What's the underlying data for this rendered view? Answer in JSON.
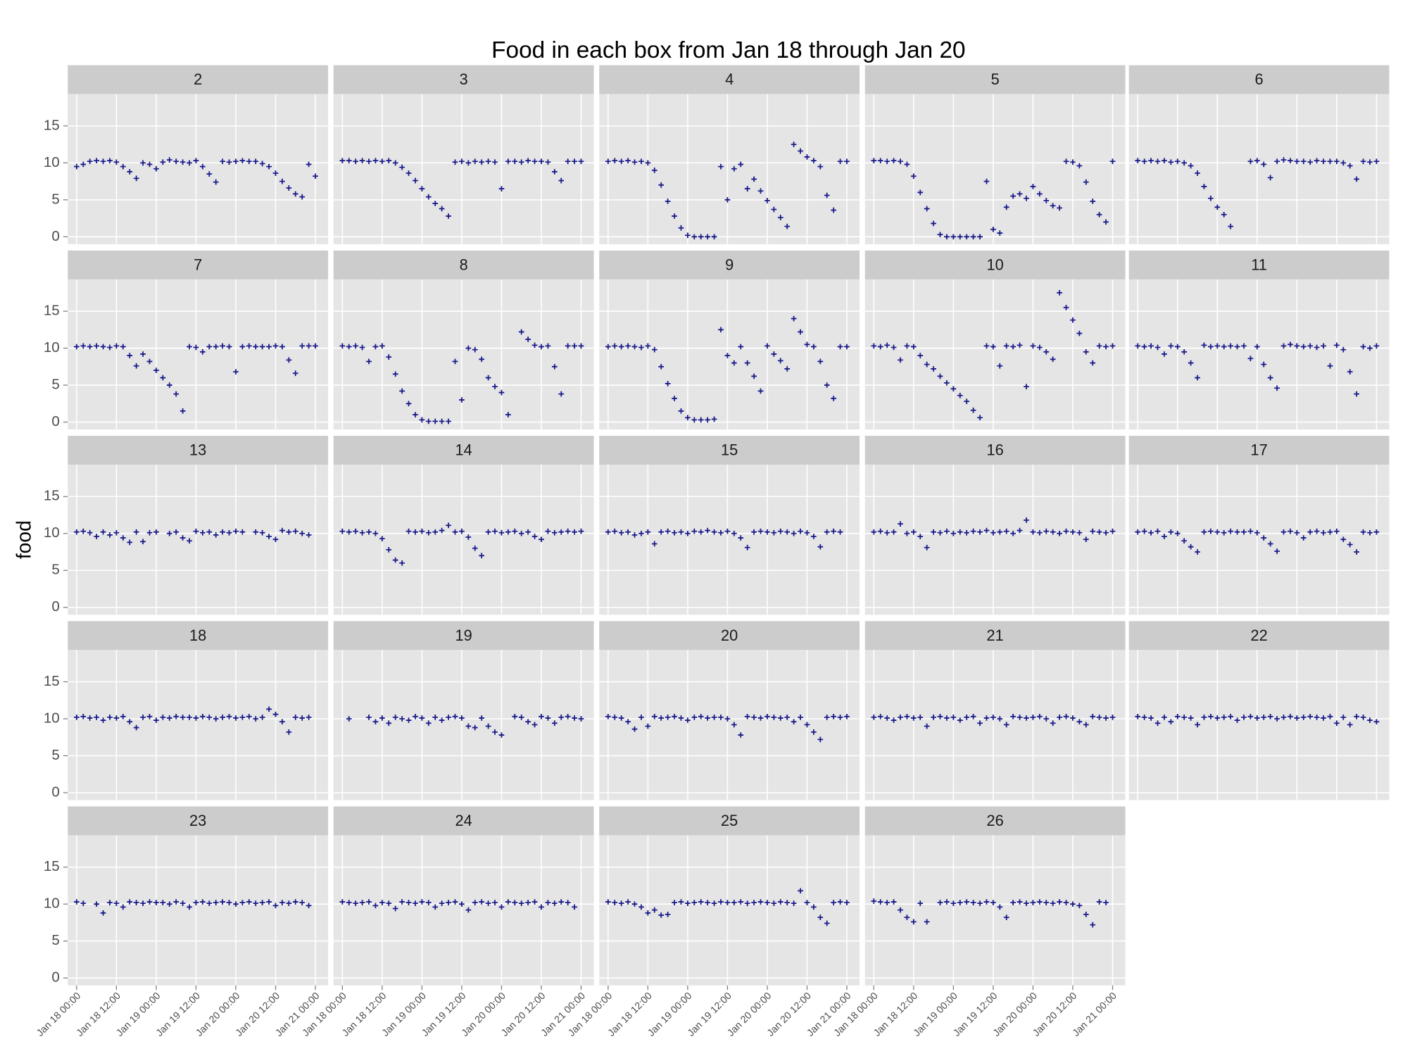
{
  "chart_data": {
    "type": "scatter",
    "title": "Food in each box from Jan 18 through Jan 20",
    "y_label": "food",
    "color": "#1a1a8a",
    "grid": true,
    "xlim": [
      "Jan 17 21:20",
      "Jan 21 03:50"
    ],
    "xticks": [
      "Jan 18 00:00",
      "Jan 18 12:00",
      "Jan 19 00:00",
      "Jan 19 12:00",
      "Jan 20 00:00",
      "Jan 20 12:00",
      "Jan 21 00:00"
    ],
    "ylim": [
      -1,
      19.3
    ],
    "yticks": [
      0,
      5,
      10,
      15
    ],
    "x": [
      "Jan 18 00:00",
      "Jan 18 02:00",
      "Jan 18 04:00",
      "Jan 18 06:00",
      "Jan 18 08:00",
      "Jan 18 10:00",
      "Jan 18 12:00",
      "Jan 18 14:00",
      "Jan 18 16:00",
      "Jan 18 18:00",
      "Jan 18 20:00",
      "Jan 18 22:00",
      "Jan 19 00:00",
      "Jan 19 02:00",
      "Jan 19 04:00",
      "Jan 19 06:00",
      "Jan 19 08:00",
      "Jan 19 10:00",
      "Jan 19 12:00",
      "Jan 19 14:00",
      "Jan 19 16:00",
      "Jan 19 18:00",
      "Jan 19 20:00",
      "Jan 19 22:00",
      "Jan 20 00:00",
      "Jan 20 02:00",
      "Jan 20 04:00",
      "Jan 20 06:00",
      "Jan 20 08:00",
      "Jan 20 10:00",
      "Jan 20 12:00",
      "Jan 20 14:00",
      "Jan 20 16:00",
      "Jan 20 18:00",
      "Jan 20 20:00",
      "Jan 20 22:00",
      "Jan 21 00:00"
    ],
    "facets": [
      {
        "name": "2",
        "values": [
          9.5,
          9.8,
          10.2,
          10.3,
          10.2,
          10.3,
          10.1,
          9.5,
          8.8,
          7.9,
          10.0,
          9.8,
          9.2,
          10.1,
          10.4,
          10.2,
          10.1,
          10.0,
          10.3,
          9.5,
          8.5,
          7.4,
          10.2,
          10.1,
          10.2,
          10.3,
          10.2,
          10.2,
          9.9,
          9.5,
          8.6,
          7.5,
          6.6,
          5.8,
          5.4,
          9.8,
          8.2
        ]
      },
      {
        "name": "3",
        "values": [
          10.3,
          10.3,
          10.2,
          10.3,
          10.2,
          10.3,
          10.2,
          10.3,
          10.0,
          9.4,
          8.6,
          7.6,
          6.5,
          5.4,
          4.5,
          3.8,
          2.8,
          10.1,
          10.2,
          10.0,
          10.2,
          10.1,
          10.2,
          10.1,
          6.5,
          10.2,
          10.2,
          10.1,
          10.3,
          10.2,
          10.2,
          10.1,
          8.8,
          7.6,
          10.2,
          10.2,
          10.2
        ]
      },
      {
        "name": "4",
        "values": [
          10.2,
          10.3,
          10.2,
          10.3,
          10.1,
          10.2,
          10.0,
          9.0,
          7.0,
          4.8,
          2.8,
          1.2,
          0.2,
          0.0,
          0.0,
          0.0,
          0.0,
          9.5,
          5.0,
          9.2,
          9.8,
          6.5,
          7.8,
          6.2,
          4.9,
          3.7,
          2.6,
          1.4,
          12.5,
          11.6,
          10.8,
          10.3,
          9.5,
          5.6,
          3.6,
          10.2,
          10.2
        ]
      },
      {
        "name": "5",
        "values": [
          10.3,
          10.3,
          10.2,
          10.3,
          10.2,
          9.8,
          8.2,
          6.0,
          3.8,
          1.8,
          0.3,
          0.0,
          0.0,
          0.0,
          0.0,
          0.0,
          0.0,
          7.5,
          1.0,
          0.5,
          4.0,
          5.5,
          5.8,
          5.2,
          6.8,
          5.8,
          4.9,
          4.2,
          3.9,
          10.2,
          10.1,
          9.6,
          7.4,
          4.8,
          3.0,
          2.0,
          10.2
        ]
      },
      {
        "name": "6",
        "values": [
          10.3,
          10.2,
          10.3,
          10.2,
          10.3,
          10.1,
          10.2,
          10.0,
          9.6,
          8.6,
          6.8,
          5.2,
          4.0,
          3.0,
          1.4,
          null,
          null,
          10.2,
          10.3,
          9.8,
          8.0,
          10.2,
          10.4,
          10.3,
          10.2,
          10.2,
          10.1,
          10.3,
          10.2,
          10.2,
          10.2,
          10.0,
          9.6,
          7.8,
          10.2,
          10.1,
          10.2
        ]
      },
      {
        "name": "7",
        "values": [
          10.2,
          10.3,
          10.2,
          10.3,
          10.2,
          10.1,
          10.3,
          10.2,
          9.0,
          7.6,
          9.2,
          8.2,
          7.0,
          6.0,
          5.0,
          3.8,
          1.5,
          10.2,
          10.1,
          9.5,
          10.2,
          10.2,
          10.3,
          10.2,
          6.8,
          10.2,
          10.3,
          10.2,
          10.2,
          10.2,
          10.3,
          10.2,
          8.4,
          6.6,
          10.3,
          10.3,
          10.3
        ]
      },
      {
        "name": "8",
        "values": [
          10.3,
          10.2,
          10.3,
          10.1,
          8.2,
          10.2,
          10.3,
          8.8,
          6.5,
          4.2,
          2.5,
          1.0,
          0.3,
          0.1,
          0.1,
          0.1,
          0.1,
          8.2,
          3.0,
          10.0,
          9.8,
          8.5,
          6.0,
          4.8,
          4.0,
          1.0,
          null,
          12.2,
          11.2,
          10.4,
          10.2,
          10.3,
          7.5,
          3.8,
          10.3,
          10.3,
          10.3
        ]
      },
      {
        "name": "9",
        "values": [
          10.2,
          10.3,
          10.2,
          10.3,
          10.2,
          10.1,
          10.3,
          9.8,
          7.5,
          5.2,
          3.2,
          1.5,
          0.6,
          0.3,
          0.3,
          0.3,
          0.4,
          12.5,
          9.0,
          8.0,
          10.2,
          8.0,
          6.2,
          4.2,
          10.3,
          9.2,
          8.3,
          7.2,
          14.0,
          12.2,
          10.5,
          10.2,
          8.2,
          5.0,
          3.2,
          10.2,
          10.2
        ]
      },
      {
        "name": "10",
        "values": [
          10.3,
          10.2,
          10.4,
          10.1,
          8.4,
          10.3,
          10.2,
          9.0,
          7.8,
          7.2,
          6.2,
          5.3,
          4.5,
          3.6,
          2.8,
          1.6,
          0.6,
          10.3,
          10.2,
          7.6,
          10.3,
          10.2,
          10.4,
          4.8,
          10.3,
          10.1,
          9.5,
          8.5,
          17.5,
          15.5,
          13.8,
          12.0,
          9.5,
          8.0,
          10.3,
          10.2,
          10.3
        ]
      },
      {
        "name": "11",
        "values": [
          10.3,
          10.2,
          10.3,
          10.1,
          9.2,
          10.3,
          10.2,
          9.5,
          8.0,
          6.0,
          10.4,
          10.2,
          10.3,
          10.2,
          10.3,
          10.2,
          10.3,
          8.6,
          10.2,
          7.8,
          6.0,
          4.6,
          10.3,
          10.5,
          10.3,
          10.2,
          10.3,
          10.1,
          10.3,
          7.6,
          10.4,
          9.8,
          6.8,
          3.8,
          10.2,
          10.0,
          10.3
        ]
      },
      {
        "name": "13",
        "values": [
          10.2,
          10.3,
          10.1,
          9.6,
          10.2,
          9.8,
          10.1,
          9.4,
          8.8,
          10.2,
          8.9,
          10.1,
          10.2,
          null,
          10.0,
          10.2,
          9.4,
          9.0,
          10.3,
          10.1,
          10.2,
          9.8,
          10.2,
          10.1,
          10.3,
          10.2,
          null,
          10.2,
          10.1,
          9.6,
          9.2,
          10.4,
          10.2,
          10.3,
          10.0,
          9.8,
          null
        ]
      },
      {
        "name": "14",
        "values": [
          10.3,
          10.2,
          10.3,
          10.1,
          10.2,
          10.0,
          9.3,
          7.8,
          6.4,
          6.0,
          10.3,
          10.2,
          10.3,
          10.1,
          10.2,
          10.4,
          11.1,
          10.2,
          10.3,
          9.5,
          8.0,
          7.0,
          10.2,
          10.3,
          10.1,
          10.2,
          10.3,
          10.0,
          10.2,
          9.6,
          9.2,
          10.3,
          10.1,
          10.2,
          10.3,
          10.2,
          10.3
        ]
      },
      {
        "name": "15",
        "values": [
          10.2,
          10.3,
          10.1,
          10.2,
          9.8,
          10.0,
          10.2,
          8.6,
          10.2,
          10.3,
          10.1,
          10.2,
          10.0,
          10.3,
          10.2,
          10.4,
          10.2,
          10.1,
          10.3,
          10.0,
          9.4,
          8.1,
          10.2,
          10.3,
          10.2,
          10.1,
          10.3,
          10.2,
          10.0,
          10.3,
          10.1,
          9.6,
          8.2,
          10.2,
          10.3,
          10.2,
          null
        ]
      },
      {
        "name": "16",
        "values": [
          10.2,
          10.3,
          10.1,
          10.2,
          11.3,
          10.0,
          10.2,
          9.6,
          8.1,
          10.2,
          10.1,
          10.3,
          10.0,
          10.2,
          10.1,
          10.3,
          10.2,
          10.4,
          10.1,
          10.2,
          10.3,
          10.0,
          10.4,
          11.8,
          10.2,
          10.1,
          10.3,
          10.2,
          10.0,
          10.3,
          10.2,
          10.1,
          9.2,
          10.3,
          10.2,
          10.1,
          10.3
        ]
      },
      {
        "name": "17",
        "values": [
          10.2,
          10.3,
          10.1,
          10.3,
          9.6,
          10.2,
          10.0,
          9.0,
          8.2,
          7.5,
          10.2,
          10.3,
          10.2,
          10.1,
          10.3,
          10.2,
          10.2,
          10.3,
          10.1,
          9.4,
          8.6,
          7.6,
          10.2,
          10.3,
          10.1,
          9.4,
          10.2,
          10.3,
          10.1,
          10.2,
          10.3,
          9.2,
          8.5,
          7.5,
          10.2,
          10.1,
          10.2
        ]
      },
      {
        "name": "18",
        "values": [
          10.2,
          10.3,
          10.1,
          10.2,
          9.8,
          10.2,
          10.1,
          10.3,
          9.6,
          8.8,
          10.2,
          10.3,
          9.8,
          10.2,
          10.1,
          10.3,
          10.2,
          10.2,
          10.1,
          10.3,
          10.2,
          10.0,
          10.2,
          10.3,
          10.1,
          10.2,
          10.3,
          10.0,
          10.2,
          11.3,
          10.6,
          9.6,
          8.2,
          10.2,
          10.1,
          10.2,
          null
        ]
      },
      {
        "name": "19",
        "values": [
          null,
          10.0,
          null,
          null,
          10.2,
          9.6,
          10.1,
          9.4,
          10.2,
          10.0,
          9.8,
          10.3,
          10.1,
          9.4,
          10.2,
          9.8,
          10.2,
          10.3,
          10.1,
          9.0,
          8.8,
          10.1,
          9.0,
          8.2,
          7.8,
          null,
          10.3,
          10.2,
          9.6,
          9.2,
          10.3,
          10.1,
          9.4,
          10.2,
          10.3,
          10.1,
          10.0
        ]
      },
      {
        "name": "20",
        "values": [
          10.3,
          10.2,
          10.1,
          9.6,
          8.6,
          10.2,
          9.0,
          10.3,
          10.1,
          10.2,
          10.3,
          10.1,
          9.8,
          10.2,
          10.3,
          10.1,
          10.2,
          10.2,
          10.0,
          9.2,
          7.8,
          10.3,
          10.2,
          10.1,
          10.3,
          10.2,
          10.1,
          10.2,
          9.6,
          10.2,
          9.2,
          8.2,
          7.2,
          10.2,
          10.3,
          10.2,
          10.3
        ]
      },
      {
        "name": "21",
        "values": [
          10.2,
          10.3,
          10.1,
          9.8,
          10.2,
          10.3,
          10.1,
          10.2,
          9.0,
          10.2,
          10.3,
          10.1,
          10.2,
          9.8,
          10.2,
          10.3,
          9.4,
          10.1,
          10.2,
          10.0,
          9.2,
          10.3,
          10.2,
          10.1,
          10.2,
          10.3,
          10.0,
          9.4,
          10.2,
          10.3,
          10.1,
          9.6,
          9.2,
          10.3,
          10.2,
          10.1,
          10.2
        ]
      },
      {
        "name": "22",
        "values": [
          10.3,
          10.2,
          10.1,
          9.4,
          10.2,
          9.6,
          10.3,
          10.2,
          10.1,
          9.2,
          10.2,
          10.3,
          10.1,
          10.2,
          10.3,
          9.8,
          10.2,
          10.3,
          10.1,
          10.2,
          10.3,
          10.0,
          10.2,
          10.3,
          10.1,
          10.2,
          10.3,
          10.2,
          10.1,
          10.3,
          9.4,
          10.2,
          9.2,
          10.3,
          10.2,
          9.8,
          9.6
        ]
      },
      {
        "name": "23",
        "values": [
          10.3,
          10.1,
          null,
          10.0,
          8.8,
          10.2,
          10.1,
          9.6,
          10.3,
          10.2,
          10.1,
          10.3,
          10.2,
          10.2,
          10.0,
          10.3,
          10.1,
          9.6,
          10.2,
          10.3,
          10.1,
          10.2,
          10.3,
          10.2,
          10.0,
          10.2,
          10.3,
          10.1,
          10.2,
          10.3,
          9.8,
          10.2,
          10.1,
          10.3,
          10.2,
          9.8,
          null
        ]
      },
      {
        "name": "24",
        "values": [
          10.3,
          10.2,
          10.1,
          10.2,
          10.3,
          9.8,
          10.2,
          10.1,
          9.4,
          10.3,
          10.2,
          10.1,
          10.3,
          10.2,
          9.6,
          10.1,
          10.2,
          10.3,
          10.0,
          9.2,
          10.2,
          10.3,
          10.1,
          10.2,
          9.6,
          10.3,
          10.2,
          10.1,
          10.2,
          10.3,
          9.6,
          10.2,
          10.1,
          10.3,
          10.2,
          9.6,
          null
        ]
      },
      {
        "name": "25",
        "values": [
          10.3,
          10.2,
          10.1,
          10.3,
          10.0,
          9.6,
          8.8,
          9.2,
          8.5,
          8.6,
          10.2,
          10.3,
          10.1,
          10.2,
          10.3,
          10.2,
          10.1,
          10.3,
          10.2,
          10.2,
          10.3,
          10.1,
          10.2,
          10.3,
          10.2,
          10.1,
          10.3,
          10.2,
          10.1,
          11.8,
          10.2,
          9.6,
          8.2,
          7.4,
          10.2,
          10.3,
          10.2
        ]
      },
      {
        "name": "26",
        "values": [
          10.4,
          10.3,
          10.2,
          10.3,
          9.2,
          8.2,
          7.6,
          10.1,
          7.6,
          null,
          10.2,
          10.3,
          10.1,
          10.2,
          10.3,
          10.2,
          10.1,
          10.3,
          10.2,
          9.6,
          8.2,
          10.2,
          10.3,
          10.1,
          10.2,
          10.3,
          10.2,
          10.1,
          10.3,
          10.2,
          10.0,
          9.8,
          8.6,
          7.2,
          10.3,
          10.2,
          null
        ]
      }
    ]
  }
}
